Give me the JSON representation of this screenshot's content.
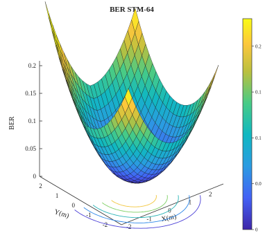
{
  "chart_data": {
    "type": "surface",
    "title": "BER STM-64",
    "xlabel": "X(m)",
    "ylabel": "Y(m)",
    "zlabel": "BER",
    "x_ticks": [
      "-2",
      "-1",
      "0",
      "1",
      "2"
    ],
    "y_ticks": [
      "2",
      "1",
      "0",
      "-1",
      "-2"
    ],
    "z_ticks": [
      "0",
      "0.05",
      "0.1",
      "0.15",
      "0.2"
    ],
    "xlim": [
      -2.5,
      2.5
    ],
    "ylim": [
      -2.5,
      2.5
    ],
    "zlim": [
      0,
      0.23
    ],
    "colormap": "parula",
    "colorbar_ticks": [
      "0",
      "0.0",
      "0.1",
      "0.1",
      "0.2"
    ],
    "colorbar_range": [
      0,
      0.23
    ],
    "surface_model": "BER rises with distance from the center (0,0); about 0.12 at the x = ±2.5 edges, highest near the (-2.5, 2.5) corner and at the far-rear corner",
    "contour_levels": 5
  }
}
